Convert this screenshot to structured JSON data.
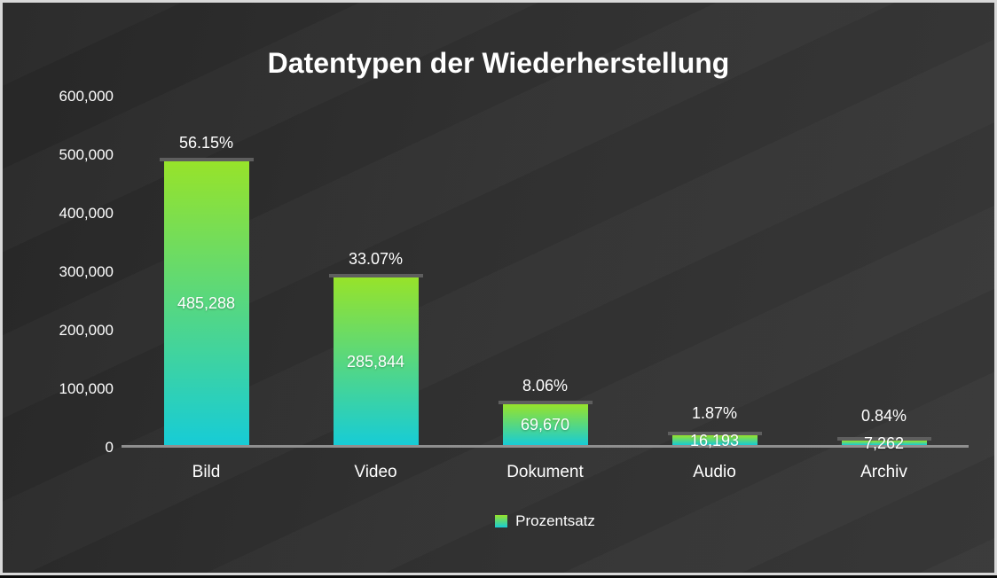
{
  "title": "Datentypen der Wiederherstellung",
  "legend": {
    "label": "Prozentsatz"
  },
  "colors": {
    "bar_gradient_top": "#97e32a",
    "bar_gradient_bottom": "#17ccd6",
    "background": "#2f2f2f",
    "axis_line": "#8f8f8f",
    "bar_cap": "#5e5e5e",
    "text": "#ffffff",
    "frame_border": "#d9d9d9"
  },
  "chart_data": {
    "type": "bar",
    "title": "Datentypen der Wiederherstellung",
    "categories": [
      "Bild",
      "Video",
      "Dokument",
      "Audio",
      "Archiv"
    ],
    "series": [
      {
        "name": "Prozentsatz",
        "values": [
          485288,
          285844,
          69670,
          16193,
          7262
        ],
        "value_labels": [
          "485,288",
          "285,844",
          "69,670",
          "16,193",
          "7,262"
        ],
        "percent_labels": [
          "56.15%",
          "33.07%",
          "8.06%",
          "1.87%",
          "0.84%"
        ]
      }
    ],
    "xlabel": "",
    "ylabel": "",
    "ylim": [
      0,
      600000
    ],
    "yticks": [
      "600,000",
      "500,000",
      "400,000",
      "300,000",
      "200,000",
      "100,000",
      "0"
    ],
    "grid": "off",
    "legend_position": "bottom"
  }
}
